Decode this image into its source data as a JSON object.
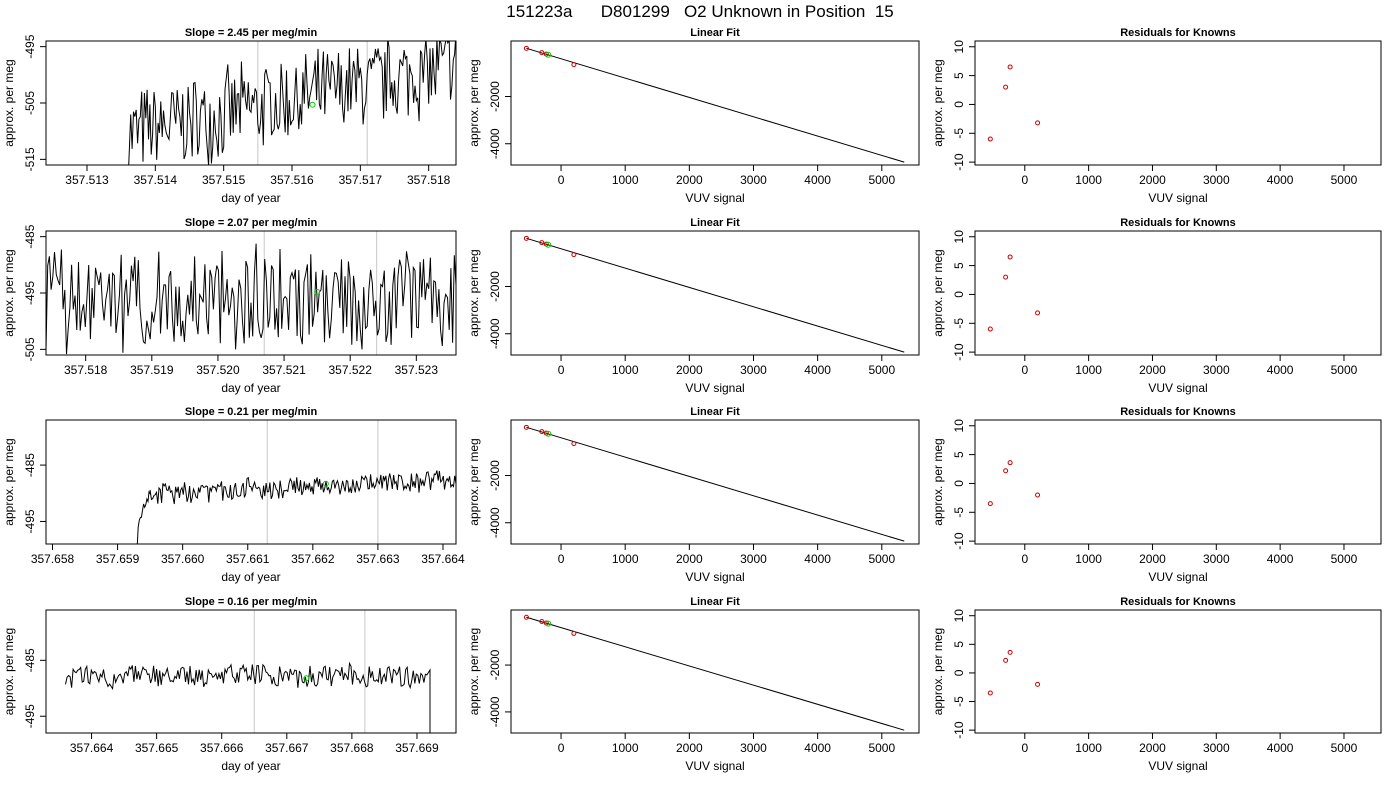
{
  "title": "151223a      D801299   O2 Unknown in Position  15",
  "chart_data": [
    {
      "type": "line",
      "title": "Slope =  2.45  per meg/min",
      "xlabel": "day of year",
      "ylabel": "approx. per meg",
      "xlim": [
        357.5124,
        357.5184
      ],
      "ylim": [
        -516,
        -494
      ],
      "xticks": [
        "357.513",
        "357.514",
        "357.515",
        "357.516",
        "357.517",
        "357.518"
      ],
      "yticks": [
        "-495",
        "-505",
        "-515"
      ],
      "vlines": [
        357.5155,
        357.5171
      ],
      "noise": {
        "start": 357.5136,
        "end": 357.5184,
        "center": -504.5,
        "amp": 9,
        "trend": 12,
        "seed": 7
      },
      "marker": {
        "x": 357.5163,
        "y": -505.3,
        "color": "#00cc00"
      }
    },
    {
      "type": "line",
      "title": "Slope =  2.07  per meg/min",
      "xlabel": "day of year",
      "ylabel": "approx. per meg",
      "xlim": [
        357.5174,
        357.5236
      ],
      "ylim": [
        -506,
        -484
      ],
      "xticks": [
        "357.518",
        "357.519",
        "357.520",
        "357.521",
        "357.522",
        "357.523"
      ],
      "yticks": [
        "-485",
        "-495",
        "-505"
      ],
      "vlines": [
        357.5207,
        357.5224
      ],
      "noise": {
        "start": 357.5174,
        "end": 357.5236,
        "center": -496,
        "amp": 10,
        "trend": 1,
        "seed": 13
      },
      "marker": {
        "x": 357.5215,
        "y": -494.8,
        "color": "#00cc00"
      }
    },
    {
      "type": "line",
      "title": "Slope =  0.21  per meg/min",
      "xlabel": "day of year",
      "ylabel": "approx. per meg",
      "xlim": [
        357.6579,
        357.6642
      ],
      "ylim": [
        -499,
        -477
      ],
      "xticks": [
        "357.658",
        "357.659",
        "357.660",
        "357.661",
        "357.662",
        "357.663",
        "357.664"
      ],
      "yticks": [
        "-485",
        "-495"
      ],
      "vlines": [
        357.6613,
        357.663
      ],
      "noise": {
        "start": 357.6593,
        "end": 357.6642,
        "center": -488.8,
        "amp": 2.2,
        "trend": 2.5,
        "seed": 21
      },
      "ramp": {
        "from": -499,
        "to": -490,
        "len": 0.0002
      },
      "marker": {
        "x": 357.6622,
        "y": -488.3,
        "color": "#00cc00"
      }
    },
    {
      "type": "line",
      "title": "Slope =  0.16  per meg/min",
      "xlabel": "day of year",
      "ylabel": "approx. per meg",
      "xlim": [
        357.6633,
        357.6696
      ],
      "ylim": [
        -498,
        -476
      ],
      "xticks": [
        "357.664",
        "357.665",
        "357.666",
        "357.667",
        "357.668",
        "357.669"
      ],
      "yticks": [
        "-485",
        "-495"
      ],
      "vlines": [
        357.6665,
        357.6682
      ],
      "noise": {
        "start": 357.6636,
        "end": 357.6692,
        "center": -487.8,
        "amp": 2.4,
        "trend": 0,
        "seed": 31
      },
      "drop": {
        "x": 357.6692,
        "y": -499
      },
      "marker": {
        "x": 357.6673,
        "y": -488.2,
        "color": "#00cc00"
      }
    }
  ],
  "fit_panels": [
    {
      "type": "scatter",
      "title": "Linear Fit",
      "xlabel": "VUV signal",
      "ylabel": "approx. per meg",
      "xlim": [
        -780,
        5580
      ],
      "ylim": [
        -4900,
        350
      ],
      "xticks": [
        0,
        1000,
        2000,
        3000,
        4000,
        5000
      ],
      "yticks": [
        -2000,
        -4000
      ],
      "points": [
        [
          -540,
          40
        ],
        [
          -300,
          -140
        ],
        [
          -230,
          -205
        ],
        [
          200,
          -650
        ]
      ],
      "point_color": "#cc0000",
      "unknown": {
        "x": -200,
        "y": -230,
        "color": "#00cc00"
      },
      "fit_line": [
        [
          -540,
          40
        ],
        [
          5350,
          -4780
        ]
      ]
    },
    {
      "type": "scatter",
      "title": "Linear Fit",
      "xlabel": "VUV signal",
      "ylabel": "approx. per meg",
      "xlim": [
        -780,
        5580
      ],
      "ylim": [
        -4900,
        350
      ],
      "xticks": [
        0,
        1000,
        2000,
        3000,
        4000,
        5000
      ],
      "yticks": [
        -2000,
        -4000
      ],
      "points": [
        [
          -540,
          40
        ],
        [
          -300,
          -140
        ],
        [
          -230,
          -205
        ],
        [
          200,
          -650
        ]
      ],
      "point_color": "#cc0000",
      "unknown": {
        "x": -200,
        "y": -230,
        "color": "#00cc00"
      },
      "fit_line": [
        [
          -540,
          40
        ],
        [
          5350,
          -4780
        ]
      ]
    },
    {
      "type": "scatter",
      "title": "Linear Fit",
      "xlabel": "VUV signal",
      "ylabel": "approx. per meg",
      "xlim": [
        -780,
        5580
      ],
      "ylim": [
        -4900,
        350
      ],
      "xticks": [
        0,
        1000,
        2000,
        3000,
        4000,
        5000
      ],
      "yticks": [
        -2000,
        -4000
      ],
      "points": [
        [
          -540,
          40
        ],
        [
          -300,
          -140
        ],
        [
          -230,
          -205
        ],
        [
          200,
          -650
        ]
      ],
      "point_color": "#cc0000",
      "unknown": {
        "x": -200,
        "y": -230,
        "color": "#00cc00"
      },
      "fit_line": [
        [
          -540,
          40
        ],
        [
          5350,
          -4780
        ]
      ]
    },
    {
      "type": "scatter",
      "title": "Linear Fit",
      "xlabel": "VUV signal",
      "ylabel": "approx. per meg",
      "xlim": [
        -780,
        5580
      ],
      "ylim": [
        -4900,
        350
      ],
      "xticks": [
        0,
        1000,
        2000,
        3000,
        4000,
        5000
      ],
      "yticks": [
        -2000,
        -4000
      ],
      "points": [
        [
          -540,
          40
        ],
        [
          -300,
          -140
        ],
        [
          -230,
          -205
        ],
        [
          200,
          -650
        ]
      ],
      "point_color": "#cc0000",
      "unknown": {
        "x": -200,
        "y": -230,
        "color": "#00cc00"
      },
      "fit_line": [
        [
          -540,
          40
        ],
        [
          5350,
          -4780
        ]
      ]
    }
  ],
  "residual_panels": [
    {
      "type": "scatter",
      "title": "Residuals for Knowns",
      "xlabel": "VUV signal",
      "ylabel": "approx. per meg",
      "xlim": [
        -780,
        5580
      ],
      "ylim": [
        -10.5,
        11
      ],
      "xticks": [
        0,
        1000,
        2000,
        3000,
        4000,
        5000
      ],
      "yticks": [
        10,
        5,
        0,
        -5,
        -10
      ],
      "points": [
        [
          -540,
          -6
        ],
        [
          -300,
          3
        ],
        [
          -230,
          6.5
        ],
        [
          200,
          -3.2
        ]
      ],
      "point_color": "#cc0000"
    },
    {
      "type": "scatter",
      "title": "Residuals for Knowns",
      "xlabel": "VUV signal",
      "ylabel": "approx. per meg",
      "xlim": [
        -780,
        5580
      ],
      "ylim": [
        -10.5,
        11
      ],
      "xticks": [
        0,
        1000,
        2000,
        3000,
        4000,
        5000
      ],
      "yticks": [
        10,
        5,
        0,
        -5,
        -10
      ],
      "points": [
        [
          -540,
          -6
        ],
        [
          -300,
          3
        ],
        [
          -230,
          6.5
        ],
        [
          200,
          -3.2
        ]
      ],
      "point_color": "#cc0000"
    },
    {
      "type": "scatter",
      "title": "Residuals for Knowns",
      "xlabel": "VUV signal",
      "ylabel": "approx. per meg",
      "xlim": [
        -780,
        5580
      ],
      "ylim": [
        -10.5,
        11
      ],
      "xticks": [
        0,
        1000,
        2000,
        3000,
        4000,
        5000
      ],
      "yticks": [
        10,
        5,
        0,
        -5,
        -10
      ],
      "points": [
        [
          -540,
          -3.5
        ],
        [
          -300,
          2.2
        ],
        [
          -230,
          3.6
        ],
        [
          200,
          -2
        ]
      ],
      "point_color": "#cc0000"
    },
    {
      "type": "scatter",
      "title": "Residuals for Knowns",
      "xlabel": "VUV signal",
      "ylabel": "approx. per meg",
      "xlim": [
        -780,
        5580
      ],
      "ylim": [
        -10.5,
        11
      ],
      "xticks": [
        0,
        1000,
        2000,
        3000,
        4000,
        5000
      ],
      "yticks": [
        10,
        5,
        0,
        -5,
        -10
      ],
      "points": [
        [
          -540,
          -3.5
        ],
        [
          -300,
          2.2
        ],
        [
          -230,
          3.6
        ],
        [
          200,
          -2
        ]
      ],
      "point_color": "#cc0000"
    }
  ]
}
